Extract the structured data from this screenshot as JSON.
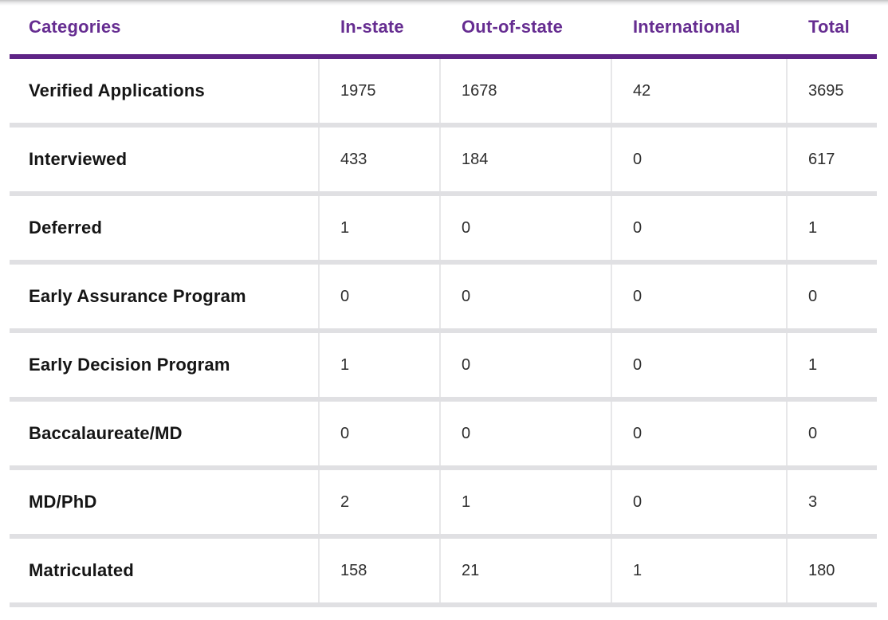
{
  "table": {
    "columns": [
      {
        "label": "Categories"
      },
      {
        "label": "In-state"
      },
      {
        "label": "Out-of-state"
      },
      {
        "label": "International"
      },
      {
        "label": "Total"
      }
    ],
    "rows": [
      {
        "label": "Verified Applications",
        "values": [
          "1975",
          "1678",
          "42",
          "3695"
        ]
      },
      {
        "label": "Interviewed",
        "values": [
          "433",
          "184",
          "0",
          "617"
        ]
      },
      {
        "label": "Deferred",
        "values": [
          "1",
          "0",
          "0",
          "1"
        ]
      },
      {
        "label": "Early Assurance Program",
        "values": [
          "0",
          "0",
          "0",
          "0"
        ]
      },
      {
        "label": "Early Decision Program",
        "values": [
          "1",
          "0",
          "0",
          "1"
        ]
      },
      {
        "label": "Baccalaureate/MD",
        "values": [
          "0",
          "0",
          "0",
          "0"
        ]
      },
      {
        "label": "MD/PhD",
        "values": [
          "2",
          "1",
          "0",
          "3"
        ]
      },
      {
        "label": "Matriculated",
        "values": [
          "158",
          "21",
          "1",
          "180"
        ]
      }
    ],
    "colors": {
      "header_text": "#662d91",
      "header_rule": "#5e2486",
      "row_label_text": "#151515",
      "value_text": "#2e2e2e",
      "row_separator": "#e0e0e3",
      "column_divider": "#e7e7e9"
    }
  }
}
